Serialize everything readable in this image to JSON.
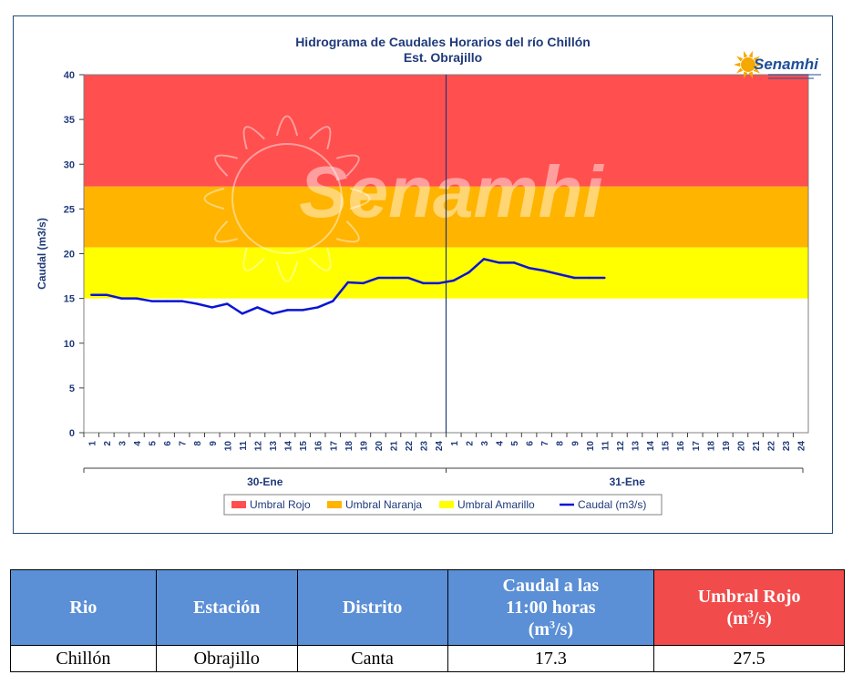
{
  "chart_data": {
    "type": "line",
    "title": "Hidrograma de Caudales Horarios del río Chillón",
    "subtitle": "Est. Obrajillo",
    "ylabel": "Caudal  (m3/s)",
    "ylim": [
      0,
      40
    ],
    "yticks": [
      "0",
      "5",
      "10",
      "15",
      "20",
      "25",
      "30",
      "35",
      "40"
    ],
    "xticks": [
      "1",
      "2",
      "3",
      "4",
      "5",
      "6",
      "7",
      "8",
      "9",
      "10",
      "11",
      "12",
      "13",
      "14",
      "15",
      "16",
      "17",
      "18",
      "19",
      "20",
      "21",
      "22",
      "23",
      "24",
      "1",
      "2",
      "3",
      "4",
      "5",
      "6",
      "7",
      "8",
      "9",
      "10",
      "11",
      "12",
      "13",
      "14",
      "15",
      "16",
      "17",
      "18",
      "19",
      "20",
      "21",
      "22",
      "23",
      "24"
    ],
    "day_groups": [
      {
        "label": "30-Ene",
        "hours": 24
      },
      {
        "label": "31-Ene",
        "hours": 24
      }
    ],
    "threshold_bands": [
      {
        "name": "Umbral Rojo",
        "from": 27.5,
        "to": 40,
        "color": "#ff4f4f"
      },
      {
        "name": "Umbral Naranja",
        "from": 20.7,
        "to": 27.5,
        "color": "#ffb400"
      },
      {
        "name": "Umbral Amarillo",
        "from": 15,
        "to": 20.7,
        "color": "#ffff00"
      }
    ],
    "series": [
      {
        "name": "Caudal (m3/s)",
        "color": "#0a14d6",
        "x": [
          1,
          2,
          3,
          4,
          5,
          6,
          7,
          8,
          9,
          10,
          11,
          12,
          13,
          14,
          15,
          16,
          17,
          18,
          19,
          20,
          21,
          22,
          23,
          24,
          25,
          26,
          27,
          28,
          29,
          30,
          31,
          32,
          33,
          34,
          35
        ],
        "values": [
          15.4,
          15.4,
          15.0,
          15.0,
          14.7,
          14.7,
          14.7,
          14.4,
          14.0,
          14.4,
          13.3,
          14.0,
          13.3,
          13.7,
          13.7,
          14.0,
          14.7,
          16.8,
          16.7,
          17.3,
          17.3,
          17.3,
          16.7,
          16.7,
          17.0,
          17.9,
          19.4,
          19.0,
          19.0,
          18.4,
          18.1,
          17.7,
          17.3,
          17.3,
          17.3
        ]
      }
    ],
    "legend": {
      "position": "bottom",
      "items": [
        "Umbral Rojo",
        "Umbral Naranja",
        "Umbral Amarillo",
        "Caudal (m3/s)"
      ]
    },
    "watermark": "Senamhi"
  },
  "logo": {
    "text": "Senamhi",
    "color": "#1f4f9a",
    "sun_color": "#f5a800"
  },
  "table": {
    "headers": {
      "rio": "Rio",
      "estacion": "Estación",
      "distrito": "Distrito",
      "caudal_l1": "Caudal a las",
      "caudal_l2": "11:00 horas",
      "caudal_unit_pre": "(m",
      "caudal_unit_sup": "3",
      "caudal_unit_post": "/s)",
      "umbral_l1": "Umbral Rojo",
      "umbral_unit_pre": "(m",
      "umbral_unit_sup": "3",
      "umbral_unit_post": "/s)"
    },
    "rows": [
      {
        "rio": "Chillón",
        "estacion": "Obrajillo",
        "distrito": "Canta",
        "caudal": "17.3",
        "umbral": "27.5"
      }
    ]
  }
}
